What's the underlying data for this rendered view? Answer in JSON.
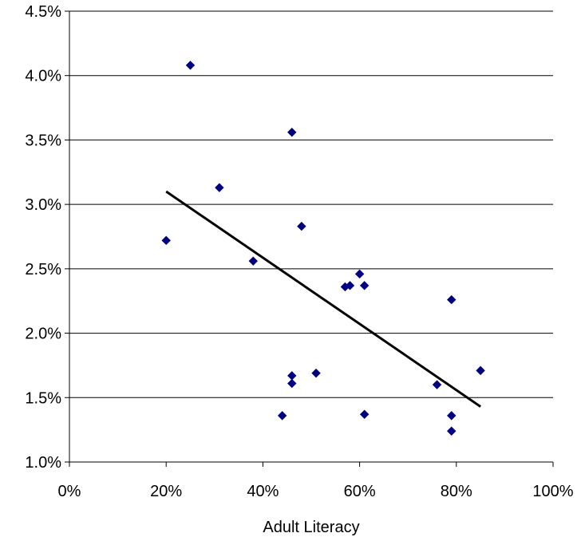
{
  "chart_data": {
    "type": "scatter",
    "title": "",
    "xlabel": "Adult Literacy",
    "ylabel": "",
    "xlim": [
      0,
      1
    ],
    "ylim": [
      0.01,
      0.045
    ],
    "x_ticks": [
      {
        "value": 0,
        "label": "0%"
      },
      {
        "value": 0.2,
        "label": "20%"
      },
      {
        "value": 0.4,
        "label": "40%"
      },
      {
        "value": 0.6,
        "label": "60%"
      },
      {
        "value": 0.8,
        "label": "80%"
      },
      {
        "value": 1.0,
        "label": "100%"
      }
    ],
    "y_ticks": [
      {
        "value": 0.01,
        "label": "1.0%"
      },
      {
        "value": 0.015,
        "label": "1.5%"
      },
      {
        "value": 0.02,
        "label": "2.0%"
      },
      {
        "value": 0.025,
        "label": "2.5%"
      },
      {
        "value": 0.03,
        "label": "3.0%"
      },
      {
        "value": 0.035,
        "label": "3.5%"
      },
      {
        "value": 0.04,
        "label": "4.0%"
      },
      {
        "value": 0.045,
        "label": "4.5%"
      }
    ],
    "grid": {
      "horizontal": true,
      "vertical": false
    },
    "legend": "none",
    "marker_color": "#000080",
    "trendline_color": "#000000",
    "points": [
      {
        "x": 0.2,
        "y": 0.0272
      },
      {
        "x": 0.25,
        "y": 0.0408
      },
      {
        "x": 0.31,
        "y": 0.0313
      },
      {
        "x": 0.38,
        "y": 0.0256
      },
      {
        "x": 0.44,
        "y": 0.0136
      },
      {
        "x": 0.46,
        "y": 0.0356
      },
      {
        "x": 0.46,
        "y": 0.0167
      },
      {
        "x": 0.46,
        "y": 0.0161
      },
      {
        "x": 0.48,
        "y": 0.0283
      },
      {
        "x": 0.51,
        "y": 0.0169
      },
      {
        "x": 0.57,
        "y": 0.0236
      },
      {
        "x": 0.58,
        "y": 0.0237
      },
      {
        "x": 0.6,
        "y": 0.0246
      },
      {
        "x": 0.61,
        "y": 0.0237
      },
      {
        "x": 0.61,
        "y": 0.0137
      },
      {
        "x": 0.76,
        "y": 0.016
      },
      {
        "x": 0.79,
        "y": 0.0226
      },
      {
        "x": 0.79,
        "y": 0.0136
      },
      {
        "x": 0.79,
        "y": 0.0124
      },
      {
        "x": 0.85,
        "y": 0.0171
      }
    ],
    "trendline": {
      "x1": 0.2,
      "y1": 0.031,
      "x2": 0.85,
      "y2": 0.0143
    }
  }
}
